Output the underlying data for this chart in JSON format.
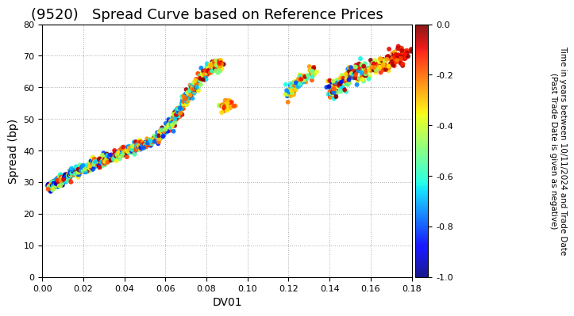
{
  "title": "(9520)   Spread Curve based on Reference Prices",
  "xlabel": "DV01",
  "ylabel": "Spread (bp)",
  "xlim": [
    0.0,
    0.18
  ],
  "ylim": [
    0,
    80
  ],
  "xticks": [
    0.0,
    0.02,
    0.04,
    0.06,
    0.08,
    0.1,
    0.12,
    0.14,
    0.16,
    0.18
  ],
  "yticks": [
    0,
    10,
    20,
    30,
    40,
    50,
    60,
    70,
    80
  ],
  "colorbar_label": "Time in years between 10/11/2024 and Trade Date\n(Past Trade Date is given as negative)",
  "colorbar_ticks": [
    0.0,
    -0.2,
    -0.4,
    -0.6,
    -0.8,
    -1.0
  ],
  "cmap": "jet",
  "background_color": "#ffffff",
  "grid_color": "#aaaaaa",
  "title_fontsize": 13,
  "axis_fontsize": 10,
  "marker_size": 18,
  "seed": 42
}
